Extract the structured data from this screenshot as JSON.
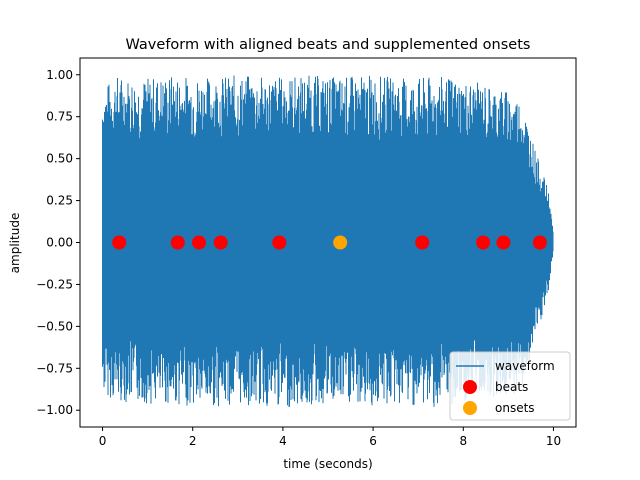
{
  "chart_data": {
    "type": "line",
    "title": "Waveform with aligned beats and supplemented onsets",
    "xlabel": "time (seconds)",
    "ylabel": "amplitude",
    "xlim": [
      -0.5,
      10.5
    ],
    "ylim": [
      -1.1,
      1.1
    ],
    "xticks": [
      0,
      2,
      4,
      6,
      8,
      10
    ],
    "xtick_labels": [
      "0",
      "2",
      "4",
      "6",
      "8",
      "10"
    ],
    "yticks": [
      -1.0,
      -0.75,
      -0.5,
      -0.25,
      0.0,
      0.25,
      0.5,
      0.75,
      1.0
    ],
    "ytick_labels": [
      "−1.00",
      "−0.75",
      "−0.50",
      "−0.25",
      "0.00",
      "0.25",
      "0.50",
      "0.75",
      "1.00"
    ],
    "grid": false,
    "legend_position": "lower-right",
    "series": [
      {
        "name": "waveform",
        "type": "line",
        "color": "#1f77b4",
        "x_range": [
          0,
          10
        ],
        "envelope": [
          [
            0.0,
            0.92,
            -0.9
          ],
          [
            0.3,
            1.0,
            -0.95
          ],
          [
            0.8,
            0.98,
            -0.96
          ],
          [
            1.5,
            1.0,
            -0.97
          ],
          [
            2.3,
            0.99,
            -0.98
          ],
          [
            3.0,
            1.0,
            -0.97
          ],
          [
            3.8,
            0.99,
            -0.99
          ],
          [
            4.5,
            1.0,
            -0.98
          ],
          [
            5.2,
            0.99,
            -0.97
          ],
          [
            6.0,
            1.0,
            -0.98
          ],
          [
            6.8,
            0.98,
            -0.97
          ],
          [
            7.5,
            0.99,
            -0.99
          ],
          [
            8.0,
            0.97,
            -0.96
          ],
          [
            8.4,
            0.95,
            -0.9
          ],
          [
            8.9,
            0.92,
            -0.94
          ],
          [
            9.3,
            0.85,
            -0.88
          ],
          [
            9.6,
            0.55,
            -0.6
          ],
          [
            9.9,
            0.3,
            -0.3
          ],
          [
            10.0,
            0.05,
            -0.05
          ]
        ]
      },
      {
        "name": "beats",
        "type": "scatter",
        "color": "#ff0000",
        "x": [
          0.37,
          1.67,
          2.14,
          2.62,
          3.92,
          7.09,
          8.44,
          8.89,
          9.7
        ],
        "y": [
          0,
          0,
          0,
          0,
          0,
          0,
          0,
          0,
          0
        ]
      },
      {
        "name": "onsets",
        "type": "scatter",
        "color": "#ffa500",
        "x": [
          5.27
        ],
        "y": [
          0
        ]
      }
    ]
  }
}
